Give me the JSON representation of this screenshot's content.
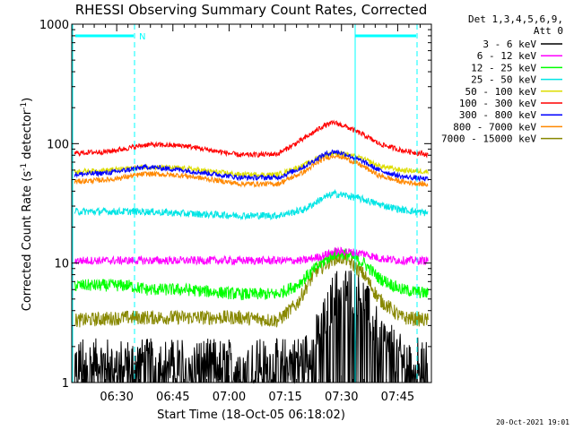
{
  "chart_data": {
    "type": "line",
    "title": "RHESSI Observing Summary Count Rates, Corrected",
    "xlabel": "Start Time (18-Oct-05 06:18:02)",
    "ylabel_main": "Corrected Count Rate (s",
    "ylabel_sup1": "-1",
    "ylabel_mid": " detector",
    "ylabel_sup2": "-1",
    "ylabel_end": ")",
    "yscale": "log",
    "ylim": [
      1,
      1000
    ],
    "xlim": [
      "06:18",
      "07:54"
    ],
    "y_ticks": [
      "1",
      "10",
      "100",
      "1000"
    ],
    "x_ticks": [
      "06:30",
      "06:45",
      "07:00",
      "07:15",
      "07:30",
      "07:45"
    ],
    "legend_header": [
      "Det 1,3,4,5,6,9,",
      "Att 0"
    ],
    "legend_position": "top-right",
    "series": [
      {
        "name": "3 - 6 keV",
        "color": "#000000",
        "x": [
          0,
          15,
          30,
          45,
          55,
          62,
          67,
          70,
          73,
          78,
          82,
          88,
          96
        ],
        "y": [
          1.5,
          1.5,
          1.5,
          1.5,
          1.5,
          1.6,
          3.0,
          5.5,
          6.5,
          5.0,
          2.5,
          1.6,
          1.5
        ]
      },
      {
        "name": "6 - 12 keV",
        "color": "#ff00ff",
        "x": [
          0,
          15,
          30,
          45,
          55,
          62,
          67,
          70,
          73,
          78,
          82,
          88,
          96
        ],
        "y": [
          10.5,
          10.5,
          10.5,
          10.5,
          10.5,
          10.5,
          11.5,
          12.5,
          12.5,
          12.0,
          11.0,
          10.5,
          10.5
        ]
      },
      {
        "name": "12 - 25 keV",
        "color": "#00ff00",
        "x": [
          0,
          10,
          15,
          20,
          30,
          45,
          55,
          60,
          65,
          70,
          73,
          78,
          82,
          88,
          96
        ],
        "y": [
          6.5,
          6.5,
          6.5,
          6.0,
          6.0,
          5.5,
          5.5,
          6.5,
          9.0,
          12.0,
          12.0,
          10.0,
          7.5,
          6.0,
          5.5
        ]
      },
      {
        "name": "25 - 50 keV",
        "color": "#00e5e5",
        "x": [
          0,
          10,
          20,
          30,
          45,
          55,
          62,
          67,
          70,
          73,
          78,
          82,
          88,
          96
        ],
        "y": [
          27,
          27,
          27,
          26,
          25,
          25,
          28,
          35,
          38,
          37,
          34,
          31,
          28,
          26
        ]
      },
      {
        "name": "50 - 100 keV",
        "color": "#dddd00",
        "x": [
          0,
          10,
          20,
          30,
          45,
          55,
          62,
          67,
          70,
          73,
          78,
          82,
          88,
          96
        ],
        "y": [
          58,
          60,
          64,
          62,
          55,
          55,
          66,
          80,
          84,
          82,
          74,
          65,
          60,
          58
        ]
      },
      {
        "name": "100 - 300 keV",
        "color": "#ff0000",
        "x": [
          0,
          10,
          20,
          30,
          45,
          55,
          62,
          67,
          70,
          73,
          78,
          82,
          88,
          96
        ],
        "y": [
          83,
          86,
          98,
          96,
          80,
          82,
          110,
          140,
          150,
          140,
          118,
          100,
          88,
          80
        ]
      },
      {
        "name": "300 - 800 keV",
        "color": "#0000ff",
        "x": [
          0,
          10,
          20,
          30,
          45,
          55,
          62,
          67,
          70,
          73,
          78,
          82,
          88,
          96
        ],
        "y": [
          55,
          57,
          64,
          60,
          52,
          52,
          64,
          80,
          86,
          82,
          70,
          60,
          53,
          50
        ]
      },
      {
        "name": "800 - 7000 keV",
        "color": "#ff8800",
        "x": [
          0,
          10,
          20,
          30,
          45,
          55,
          62,
          67,
          70,
          73,
          78,
          82,
          88,
          96
        ],
        "y": [
          48,
          50,
          56,
          54,
          46,
          46,
          58,
          74,
          80,
          76,
          64,
          54,
          48,
          45
        ]
      },
      {
        "name": "7000 - 15000 keV",
        "color": "#888800",
        "x": [
          0,
          15,
          30,
          45,
          55,
          60,
          65,
          70,
          73,
          78,
          82,
          88,
          96
        ],
        "y": [
          3.3,
          3.5,
          3.5,
          3.5,
          3.3,
          4.5,
          8.5,
          11.0,
          11.0,
          8.0,
          5.0,
          3.5,
          3.3
        ]
      }
    ],
    "annotations": [
      {
        "text": "N",
        "color": "#00ffff"
      }
    ],
    "bar_color": "#00ffff",
    "timestamp": "20-Oct-2021 19:01"
  }
}
